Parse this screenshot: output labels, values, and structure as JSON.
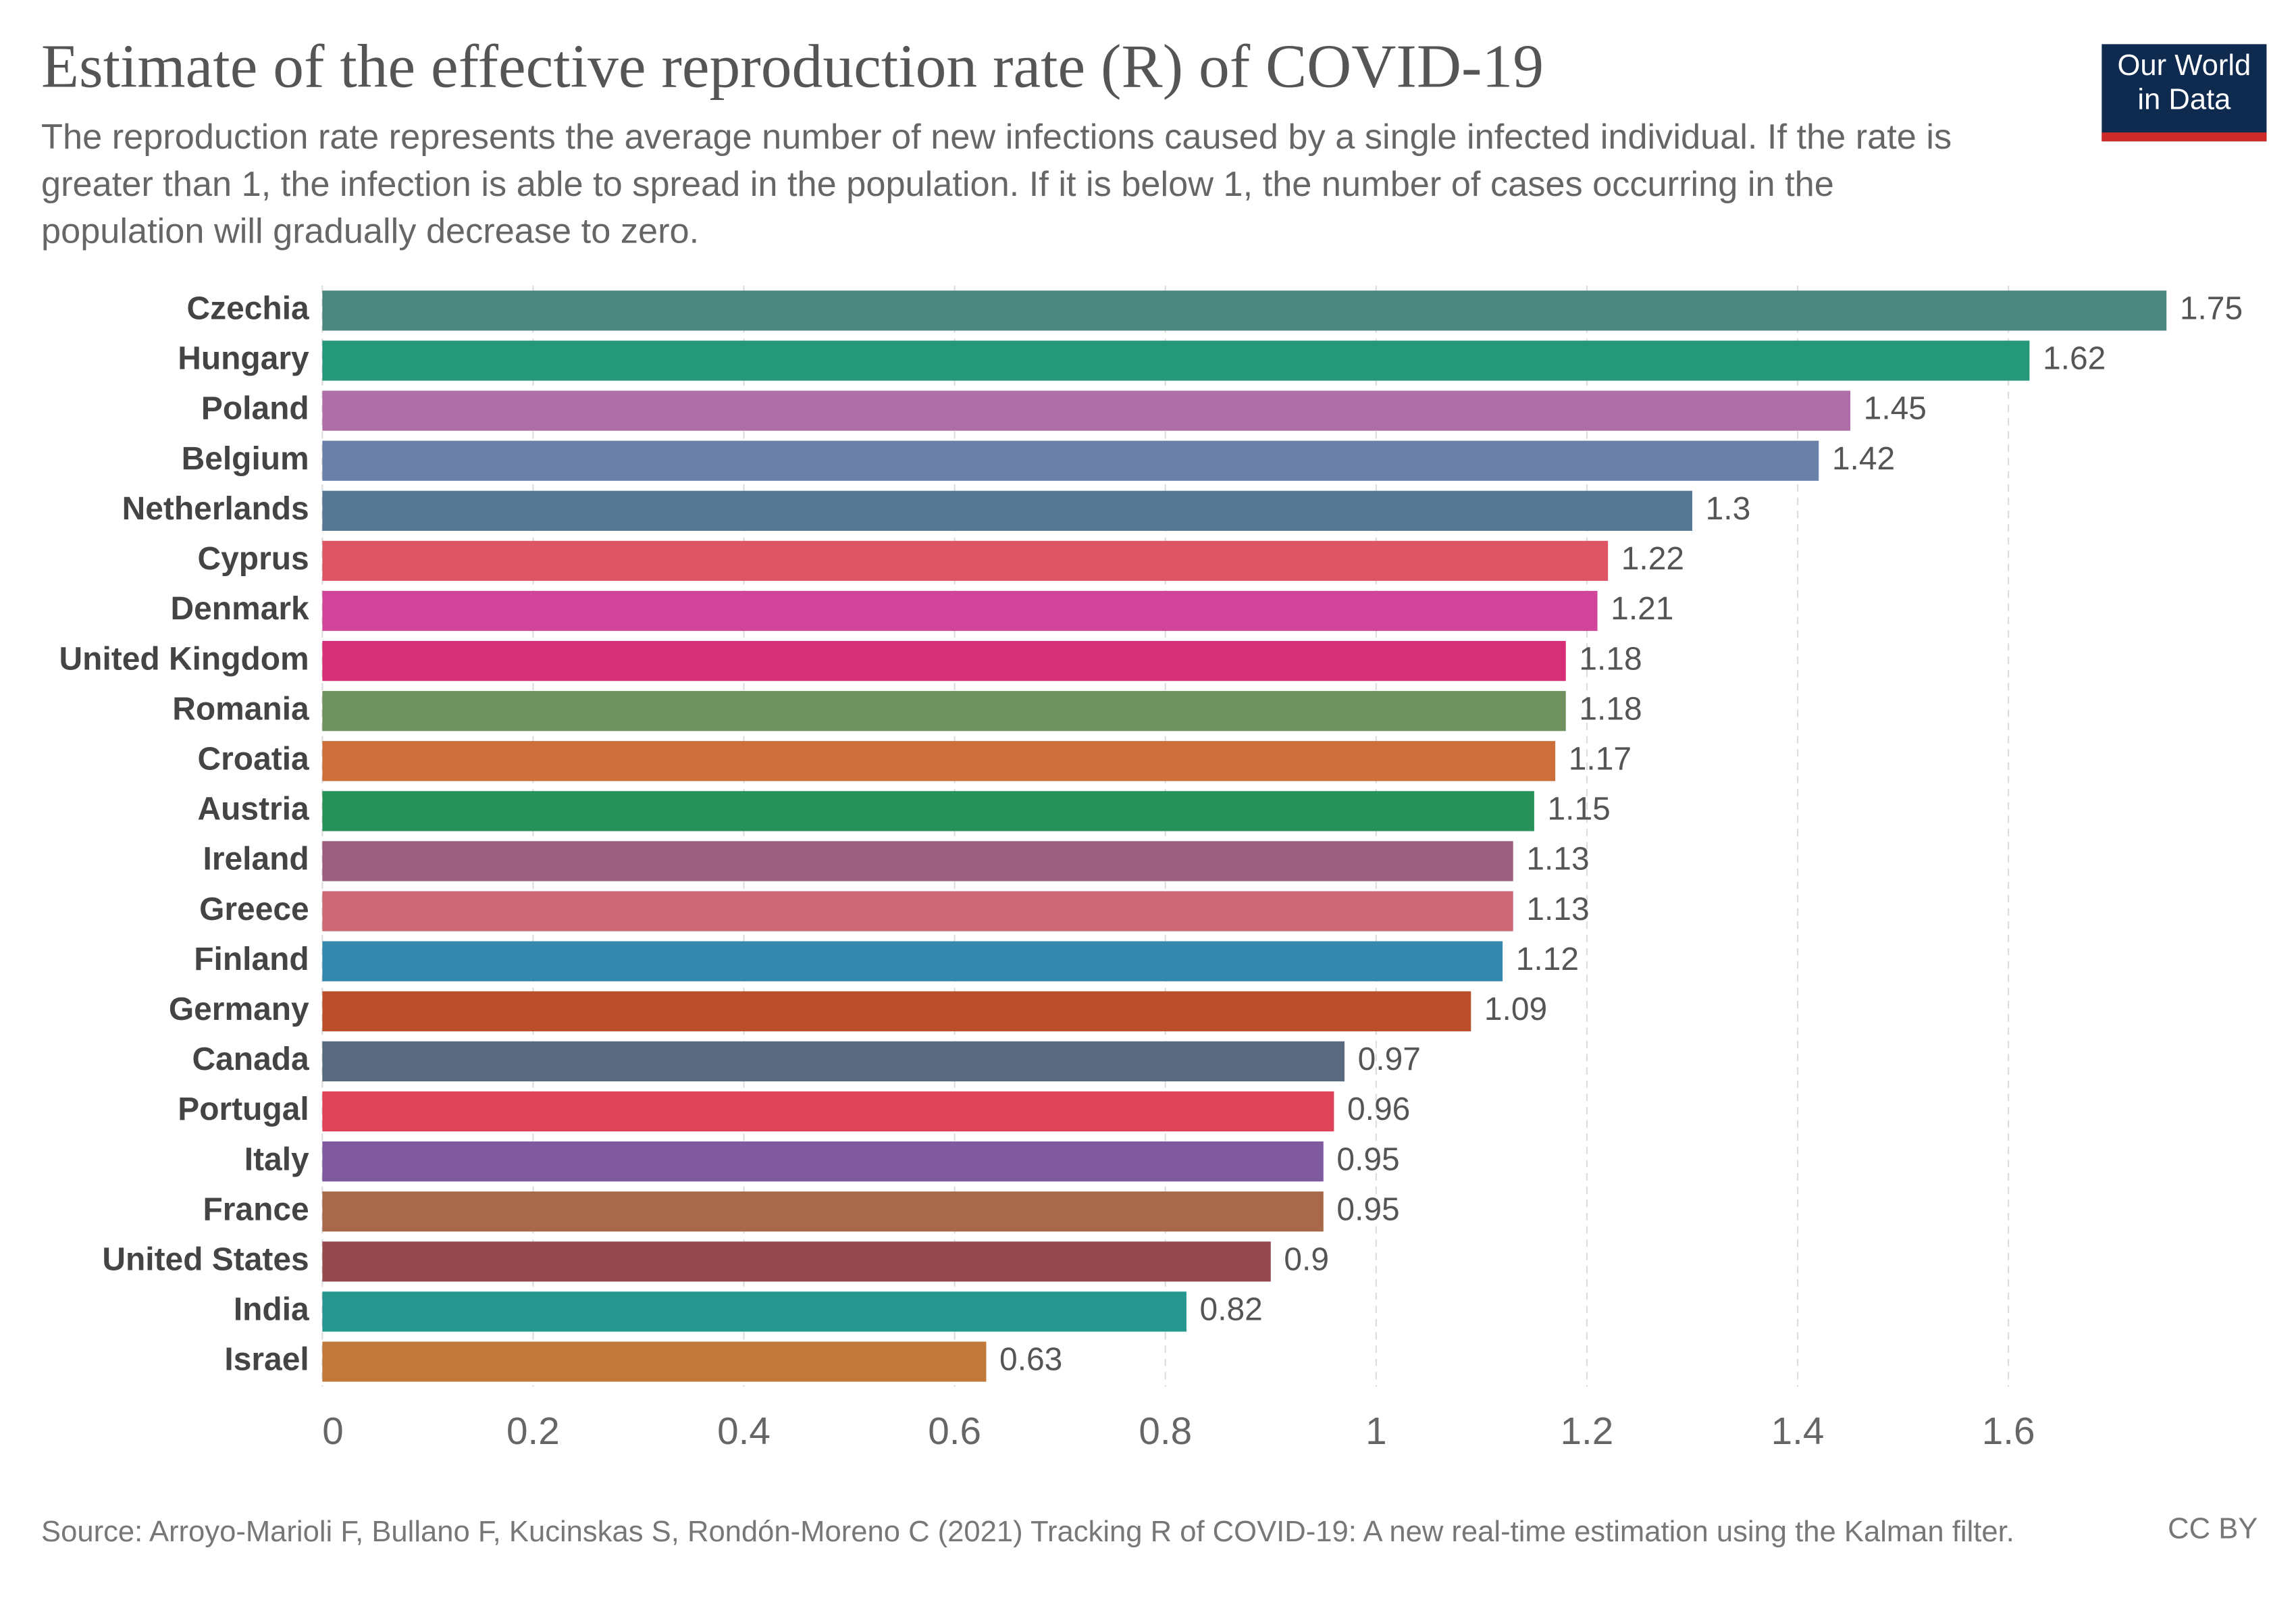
{
  "chart_data": {
    "type": "bar",
    "title": "Estimate of the effective reproduction rate (R) of COVID-19",
    "subtitle": "The reproduction rate represents the average number of new infections caused by a single infected individual. If the rate is greater than 1, the infection is able to spread in the population. If it is below 1, the number of cases occurring in the population will gradually decrease to zero.",
    "categories": [
      "Czechia",
      "Hungary",
      "Poland",
      "Belgium",
      "Netherlands",
      "Cyprus",
      "Denmark",
      "United Kingdom",
      "Romania",
      "Croatia",
      "Austria",
      "Ireland",
      "Greece",
      "Finland",
      "Germany",
      "Canada",
      "Portugal",
      "Italy",
      "France",
      "United States",
      "India",
      "Israel"
    ],
    "values": [
      1.75,
      1.62,
      1.45,
      1.42,
      1.3,
      1.22,
      1.21,
      1.18,
      1.18,
      1.17,
      1.15,
      1.13,
      1.13,
      1.12,
      1.09,
      0.97,
      0.96,
      0.95,
      0.95,
      0.9,
      0.82,
      0.63
    ],
    "colors": [
      "#4c877d",
      "#26987a",
      "#ae6fa9",
      "#6a80a9",
      "#577895",
      "#de5665",
      "#d0449a",
      "#d62f78",
      "#6e915d",
      "#cc6f3a",
      "#27915a",
      "#9a5f7c",
      "#cc6878",
      "#3487ad",
      "#bc4f2b",
      "#5a6a7e",
      "#dd4459",
      "#7f5a9e",
      "#a8694a",
      "#954a52",
      "#26978f",
      "#c07939"
    ],
    "xlim": [
      0,
      1.75
    ],
    "xticks": [
      0,
      0.2,
      0.4,
      0.6,
      0.8,
      1,
      1.2,
      1.4,
      1.6
    ],
    "grid": true,
    "source": "Source: Arroyo-Marioli F, Bullano F, Kucinskas S, Rondón-Moreno C (2021) Tracking R of COVID-19: A new real-time estimation using the Kalman filter.",
    "license": "CC BY",
    "logo": [
      "Our World",
      "in Data"
    ]
  }
}
